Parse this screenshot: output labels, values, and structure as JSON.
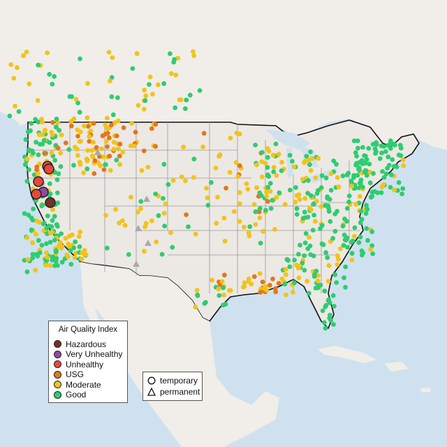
{
  "colors": {
    "ocean": "#cfe1ef",
    "land": "#ece8e4",
    "land_foreign": "#f1ede9",
    "state_line": "#9a9a9a",
    "border_line": "#111111"
  },
  "legend_aqi": {
    "title": "Air Quality Index",
    "items": [
      {
        "label": "Hazardous",
        "color": "#7a2e24"
      },
      {
        "label": "Very Unhealthy",
        "color": "#8e4aa2"
      },
      {
        "label": "Unhealthy",
        "color": "#e8483a"
      },
      {
        "label": "USG",
        "color": "#e2771f"
      },
      {
        "label": "Moderate",
        "color": "#f0c419"
      },
      {
        "label": "Good",
        "color": "#2ecc71"
      }
    ]
  },
  "legend_type": {
    "items": [
      {
        "label": "temporary",
        "glyph": "circle-icon"
      },
      {
        "label": "permanent",
        "glyph": "triangle-icon"
      }
    ]
  }
}
